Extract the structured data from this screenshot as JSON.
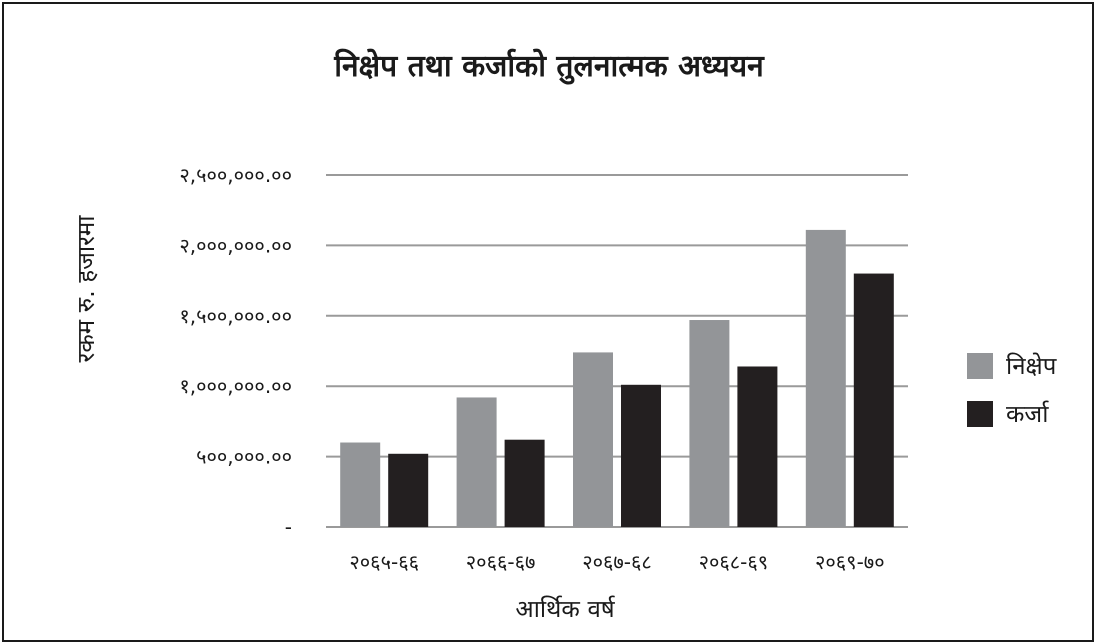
{
  "chart_data": {
    "type": "bar",
    "title": "निक्षेप तथा कर्जाको तुलनात्मक अध्ययन",
    "xlabel": "आर्थिक वर्ष",
    "ylabel": "रकम रु. हजारमा",
    "categories": [
      "२०६५-६६",
      "२०६६-६७",
      "२०६७-६८",
      "२०६८-६९",
      "२०६९-७०"
    ],
    "series": [
      {
        "name": "निक्षेप",
        "color": "#939598",
        "values": [
          600000,
          920000,
          1240000,
          1470000,
          2110000
        ]
      },
      {
        "name": "कर्जा",
        "color": "#231f20",
        "values": [
          520000,
          620000,
          1010000,
          1140000,
          1800000
        ]
      }
    ],
    "ylim": [
      0,
      2500000
    ],
    "yticks": [
      {
        "value": 0,
        "label": "-"
      },
      {
        "value": 500000,
        "label": "५००,०००.००"
      },
      {
        "value": 1000000,
        "label": "१,०००,०००.००"
      },
      {
        "value": 1500000,
        "label": "१,५००,०००.००"
      },
      {
        "value": 2000000,
        "label": "२,०००,०००.००"
      },
      {
        "value": 2500000,
        "label": "२,५००,०००.००"
      }
    ],
    "grid": true,
    "legend": "right"
  }
}
